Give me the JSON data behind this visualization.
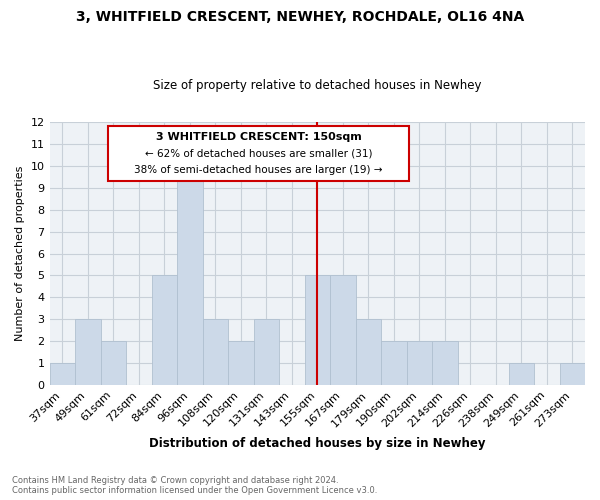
{
  "title": "3, WHITFIELD CRESCENT, NEWHEY, ROCHDALE, OL16 4NA",
  "subtitle": "Size of property relative to detached houses in Newhey",
  "xlabel": "Distribution of detached houses by size in Newhey",
  "ylabel": "Number of detached properties",
  "bar_labels": [
    "37sqm",
    "49sqm",
    "61sqm",
    "72sqm",
    "84sqm",
    "96sqm",
    "108sqm",
    "120sqm",
    "131sqm",
    "143sqm",
    "155sqm",
    "167sqm",
    "179sqm",
    "190sqm",
    "202sqm",
    "214sqm",
    "226sqm",
    "238sqm",
    "249sqm",
    "261sqm",
    "273sqm"
  ],
  "bar_values": [
    1,
    3,
    2,
    0,
    5,
    10,
    3,
    2,
    3,
    0,
    5,
    5,
    3,
    2,
    2,
    2,
    0,
    0,
    1,
    0,
    1
  ],
  "bar_color": "#ccd9e8",
  "marker_line_index": 10.5,
  "marker_line_color": "#cc0000",
  "ylim": [
    0,
    12
  ],
  "yticks": [
    0,
    1,
    2,
    3,
    4,
    5,
    6,
    7,
    8,
    9,
    10,
    11,
    12
  ],
  "annotation_text_line1": "3 WHITFIELD CRESCENT: 150sqm",
  "annotation_text_line2": "← 62% of detached houses are smaller (31)",
  "annotation_text_line3": "38% of semi-detached houses are larger (19) →",
  "annotation_box_color": "#cc0000",
  "footer_line1": "Contains HM Land Registry data © Crown copyright and database right 2024.",
  "footer_line2": "Contains public sector information licensed under the Open Government Licence v3.0.",
  "grid_color": "#c8d0d8",
  "background_color": "#eef2f6"
}
